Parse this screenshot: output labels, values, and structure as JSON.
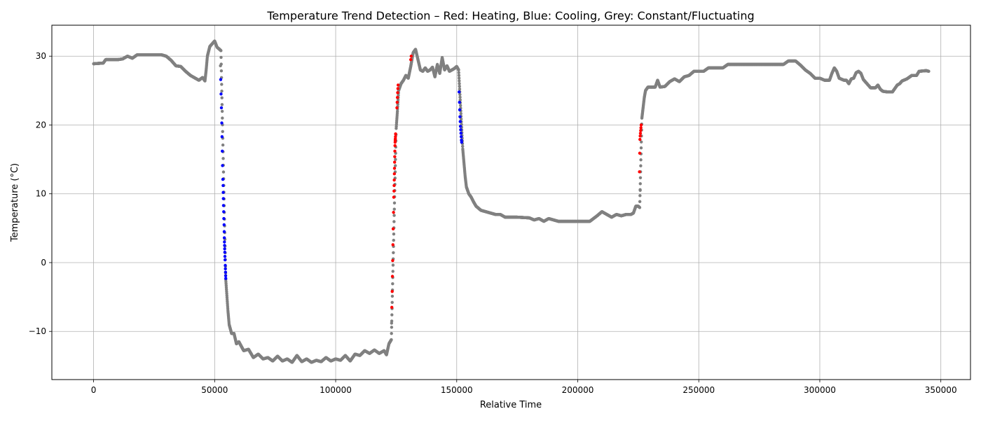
{
  "chart_data": {
    "type": "scatter",
    "title": "Temperature Trend Detection – Red: Heating, Blue: Cooling, Grey: Constant/Fluctuating",
    "xlabel": "Relative Time",
    "ylabel": "Temperature (°C)",
    "xlim": [
      -17250,
      362250
    ],
    "ylim": [
      -17,
      34.5
    ],
    "xticks": [
      0,
      50000,
      100000,
      150000,
      200000,
      250000,
      300000,
      350000
    ],
    "xtick_labels": [
      "0",
      "50000",
      "100000",
      "150000",
      "200000",
      "250000",
      "300000",
      "350000"
    ],
    "yticks": [
      -10,
      0,
      10,
      20,
      30
    ],
    "ytick_labels": [
      "−10",
      "0",
      "10",
      "20",
      "30"
    ],
    "grid": true,
    "legend": "none",
    "colors": {
      "heating": "#ff0000",
      "cooling": "#0000ff",
      "constant": "#808080"
    },
    "series": [
      {
        "color": "#808080",
        "mode": "dense",
        "points": [
          [
            0,
            28.9
          ],
          [
            4000,
            29.0
          ],
          [
            5000,
            29.5
          ],
          [
            10000,
            29.5
          ],
          [
            12000,
            29.6
          ],
          [
            14000,
            30.0
          ],
          [
            16000,
            29.7
          ],
          [
            18000,
            30.2
          ],
          [
            28000,
            30.2
          ],
          [
            30000,
            30.0
          ],
          [
            32000,
            29.4
          ],
          [
            34000,
            28.6
          ],
          [
            36000,
            28.5
          ],
          [
            38000,
            27.8
          ],
          [
            40000,
            27.2
          ],
          [
            42000,
            26.8
          ],
          [
            43500,
            26.5
          ],
          [
            45000,
            26.9
          ],
          [
            46000,
            26.4
          ],
          [
            46500,
            28.0
          ],
          [
            47000,
            30.0
          ],
          [
            48000,
            31.4
          ],
          [
            49000,
            31.8
          ],
          [
            50000,
            32.2
          ],
          [
            51000,
            31.3
          ],
          [
            52000,
            31.0
          ],
          [
            52600,
            30.8
          ],
          [
            54600,
            -2.5
          ],
          [
            55000,
            -4.5
          ],
          [
            55500,
            -7.0
          ],
          [
            56000,
            -9.0
          ],
          [
            57000,
            -10.3
          ],
          [
            58000,
            -10.3
          ],
          [
            59000,
            -11.8
          ],
          [
            60000,
            -11.5
          ],
          [
            62000,
            -12.8
          ],
          [
            64000,
            -12.6
          ],
          [
            66000,
            -13.8
          ],
          [
            68000,
            -13.3
          ],
          [
            70000,
            -14.0
          ],
          [
            72000,
            -13.8
          ],
          [
            74000,
            -14.3
          ],
          [
            76000,
            -13.6
          ],
          [
            78000,
            -14.3
          ],
          [
            80000,
            -14.0
          ],
          [
            82000,
            -14.5
          ],
          [
            84000,
            -13.5
          ],
          [
            86000,
            -14.4
          ],
          [
            88000,
            -14.0
          ],
          [
            90000,
            -14.5
          ],
          [
            92000,
            -14.2
          ],
          [
            94000,
            -14.4
          ],
          [
            96000,
            -13.8
          ],
          [
            98000,
            -14.3
          ],
          [
            100000,
            -14.0
          ],
          [
            102000,
            -14.2
          ],
          [
            104000,
            -13.5
          ],
          [
            106000,
            -14.3
          ],
          [
            108000,
            -13.3
          ],
          [
            110000,
            -13.5
          ],
          [
            112000,
            -12.8
          ],
          [
            114000,
            -13.2
          ],
          [
            116000,
            -12.7
          ],
          [
            118000,
            -13.2
          ],
          [
            120000,
            -12.8
          ],
          [
            121000,
            -13.4
          ],
          [
            122000,
            -11.8
          ],
          [
            123000,
            -11.2
          ],
          [
            125000,
            19.5
          ],
          [
            125500,
            22.0
          ],
          [
            126000,
            25.0
          ],
          [
            127000,
            26.0
          ],
          [
            128000,
            26.5
          ],
          [
            129000,
            27.2
          ],
          [
            130000,
            26.8
          ],
          [
            131000,
            28.5
          ],
          [
            132000,
            30.5
          ],
          [
            133000,
            31.0
          ],
          [
            134000,
            29.5
          ],
          [
            135000,
            28.0
          ],
          [
            136000,
            27.8
          ],
          [
            137000,
            28.3
          ],
          [
            138000,
            27.8
          ],
          [
            139000,
            28.0
          ],
          [
            140000,
            28.4
          ],
          [
            141000,
            27.0
          ],
          [
            142000,
            28.8
          ],
          [
            143000,
            27.5
          ],
          [
            144000,
            29.8
          ],
          [
            145000,
            28.0
          ],
          [
            146000,
            28.6
          ],
          [
            147000,
            27.8
          ],
          [
            148000,
            28.0
          ],
          [
            149000,
            28.2
          ],
          [
            150000,
            28.5
          ],
          [
            150800,
            28.0
          ],
          [
            152500,
            16.5
          ],
          [
            153000,
            14.5
          ],
          [
            153500,
            12.5
          ],
          [
            154000,
            11.0
          ],
          [
            155000,
            10.0
          ],
          [
            156000,
            9.5
          ],
          [
            157000,
            8.8
          ],
          [
            158000,
            8.2
          ],
          [
            160000,
            7.6
          ],
          [
            162000,
            7.4
          ],
          [
            164000,
            7.2
          ],
          [
            166000,
            7.0
          ],
          [
            168000,
            7.0
          ],
          [
            170000,
            6.6
          ],
          [
            175000,
            6.6
          ],
          [
            180000,
            6.5
          ],
          [
            182000,
            6.2
          ],
          [
            184000,
            6.4
          ],
          [
            186000,
            6.0
          ],
          [
            188000,
            6.4
          ],
          [
            190000,
            6.2
          ],
          [
            192000,
            6.0
          ],
          [
            195000,
            6.0
          ],
          [
            200000,
            6.0
          ],
          [
            202000,
            6.0
          ],
          [
            205000,
            6.0
          ],
          [
            208000,
            6.8
          ],
          [
            210000,
            7.4
          ],
          [
            212000,
            7.0
          ],
          [
            214000,
            6.6
          ],
          [
            216000,
            7.0
          ],
          [
            218000,
            6.8
          ],
          [
            220000,
            7.0
          ],
          [
            222000,
            7.0
          ],
          [
            223000,
            7.2
          ],
          [
            224000,
            8.2
          ],
          [
            225000,
            8.2
          ],
          [
            225600,
            8.0
          ],
          [
            226500,
            21.0
          ],
          [
            227000,
            22.5
          ],
          [
            227500,
            24.0
          ],
          [
            228000,
            25.0
          ],
          [
            229000,
            25.5
          ],
          [
            230000,
            25.5
          ],
          [
            232000,
            25.5
          ],
          [
            233000,
            26.5
          ],
          [
            234000,
            25.5
          ],
          [
            236000,
            25.6
          ],
          [
            238000,
            26.3
          ],
          [
            240000,
            26.7
          ],
          [
            242000,
            26.3
          ],
          [
            244000,
            27.0
          ],
          [
            246000,
            27.2
          ],
          [
            248000,
            27.8
          ],
          [
            250000,
            27.8
          ],
          [
            252000,
            27.8
          ],
          [
            254000,
            28.3
          ],
          [
            256000,
            28.3
          ],
          [
            260000,
            28.3
          ],
          [
            262000,
            28.8
          ],
          [
            265000,
            28.8
          ],
          [
            270000,
            28.8
          ],
          [
            275000,
            28.8
          ],
          [
            280000,
            28.8
          ],
          [
            285000,
            28.8
          ],
          [
            287000,
            29.3
          ],
          [
            290000,
            29.3
          ],
          [
            292000,
            28.7
          ],
          [
            294000,
            28.0
          ],
          [
            296000,
            27.5
          ],
          [
            298000,
            26.8
          ],
          [
            300000,
            26.8
          ],
          [
            302000,
            26.5
          ],
          [
            304000,
            26.5
          ],
          [
            305000,
            27.5
          ],
          [
            306000,
            28.3
          ],
          [
            307000,
            27.8
          ],
          [
            308000,
            26.8
          ],
          [
            310000,
            26.5
          ],
          [
            311000,
            26.5
          ],
          [
            312000,
            26.0
          ],
          [
            313000,
            26.7
          ],
          [
            314000,
            26.8
          ],
          [
            315000,
            27.6
          ],
          [
            316000,
            27.8
          ],
          [
            317000,
            27.5
          ],
          [
            318000,
            26.6
          ],
          [
            319000,
            26.2
          ],
          [
            320000,
            25.8
          ],
          [
            321000,
            25.4
          ],
          [
            323000,
            25.4
          ],
          [
            324000,
            25.8
          ],
          [
            325000,
            25.2
          ],
          [
            326000,
            24.9
          ],
          [
            328000,
            24.8
          ],
          [
            330000,
            24.8
          ],
          [
            331000,
            25.3
          ],
          [
            332000,
            25.8
          ],
          [
            333000,
            26.0
          ],
          [
            334000,
            26.4
          ],
          [
            336000,
            26.7
          ],
          [
            338000,
            27.2
          ],
          [
            340000,
            27.2
          ],
          [
            341000,
            27.8
          ],
          [
            344000,
            27.9
          ],
          [
            345000,
            27.8
          ]
        ]
      },
      {
        "color": "#808080",
        "mode": "points",
        "points": [
          [
            52400,
            28.6
          ],
          [
            123100,
            -8.8
          ],
          [
            225800,
            10.5
          ]
        ]
      },
      {
        "color": "#0000ff",
        "mode": "points",
        "points": [
          [
            52500,
            26.6
          ],
          [
            52650,
            24.5
          ],
          [
            52800,
            22.5
          ],
          [
            52950,
            20.3
          ],
          [
            53050,
            18.3
          ],
          [
            53150,
            16.2
          ],
          [
            53250,
            14.1
          ],
          [
            53400,
            12.1
          ],
          [
            53500,
            11.2
          ],
          [
            53550,
            10.2
          ],
          [
            53600,
            9.3
          ],
          [
            53650,
            8.3
          ],
          [
            53750,
            7.4
          ],
          [
            53800,
            6.4
          ],
          [
            53900,
            5.5
          ],
          [
            53950,
            4.5
          ],
          [
            54000,
            3.6
          ],
          [
            54050,
            3.0
          ],
          [
            54100,
            2.5
          ],
          [
            54150,
            2.0
          ],
          [
            54200,
            1.5
          ],
          [
            54250,
            0.9
          ],
          [
            54300,
            0.4
          ],
          [
            54400,
            -0.4
          ],
          [
            54450,
            -0.9
          ],
          [
            54500,
            -1.4
          ],
          [
            54550,
            -1.9
          ],
          [
            54600,
            -2.3
          ],
          [
            151000,
            24.8
          ],
          [
            151150,
            23.3
          ],
          [
            151250,
            22.2
          ],
          [
            151350,
            21.2
          ],
          [
            151450,
            20.5
          ],
          [
            151550,
            19.8
          ],
          [
            151650,
            19.3
          ],
          [
            151750,
            18.8
          ],
          [
            151850,
            18.3
          ],
          [
            151950,
            17.8
          ],
          [
            152050,
            17.5
          ]
        ]
      },
      {
        "color": "#ff0000",
        "mode": "points",
        "points": [
          [
            123200,
            -6.5
          ],
          [
            123350,
            -4.2
          ],
          [
            123450,
            -2.0
          ],
          [
            123550,
            0.3
          ],
          [
            123650,
            2.6
          ],
          [
            123750,
            4.9
          ],
          [
            123900,
            7.3
          ],
          [
            124000,
            9.5
          ],
          [
            124100,
            10.4
          ],
          [
            124150,
            11.2
          ],
          [
            124200,
            12.0
          ],
          [
            124250,
            12.9
          ],
          [
            124300,
            13.7
          ],
          [
            124350,
            14.6
          ],
          [
            124400,
            15.4
          ],
          [
            124450,
            16.2
          ],
          [
            124500,
            17.0
          ],
          [
            124550,
            17.5
          ],
          [
            124600,
            17.8
          ],
          [
            124650,
            18.0
          ],
          [
            124700,
            18.3
          ],
          [
            124750,
            18.7
          ],
          [
            125300,
            22.5
          ],
          [
            125400,
            23.3
          ],
          [
            125500,
            24.0
          ],
          [
            125600,
            24.7
          ],
          [
            125700,
            25.3
          ],
          [
            125800,
            25.8
          ],
          [
            131000,
            29.5
          ],
          [
            131200,
            30.0
          ],
          [
            225500,
            13.2
          ],
          [
            225600,
            15.9
          ],
          [
            225700,
            17.9
          ],
          [
            225800,
            18.4
          ],
          [
            225900,
            18.8
          ],
          [
            226000,
            19.2
          ],
          [
            226100,
            19.6
          ],
          [
            226200,
            20.0
          ]
        ]
      }
    ]
  }
}
